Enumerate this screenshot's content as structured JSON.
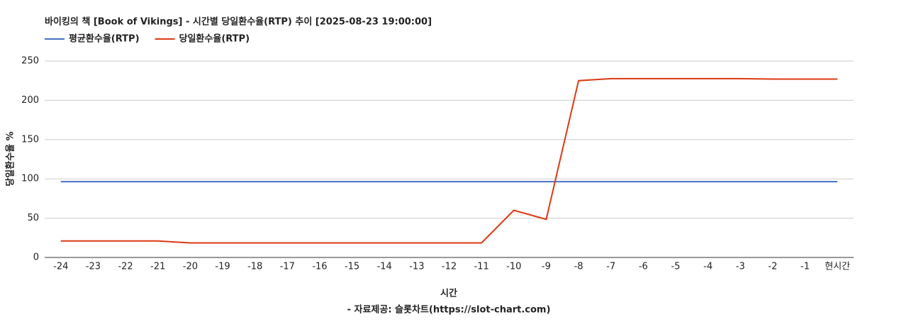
{
  "chart_data": {
    "type": "line",
    "title": "바이킹의 책 [Book of Vikings] - 시간별 당일환수율(RTP) 추이 [2025-08-23 19:00:00]",
    "x_label": "시간",
    "y_label": "당일환수율 %",
    "source": "- 자료제공: 슬롯차트(https://slot-chart.com)",
    "categories": [
      "-24",
      "-23",
      "-22",
      "-21",
      "-20",
      "-19",
      "-18",
      "-17",
      "-16",
      "-15",
      "-14",
      "-13",
      "-12",
      "-11",
      "-10",
      "-9",
      "-8",
      "-7",
      "-6",
      "-5",
      "-4",
      "-3",
      "-2",
      "-1",
      "현시간"
    ],
    "series": [
      {
        "name": "평균환수율(RTP)",
        "color": "#4472c4",
        "values": [
          96.5,
          96.5,
          96.5,
          96.5,
          96.5,
          96.5,
          96.5,
          96.5,
          96.5,
          96.5,
          96.5,
          96.5,
          96.5,
          96.5,
          96.5,
          96.5,
          96.5,
          96.5,
          96.5,
          96.5,
          96.5,
          96.5,
          96.5,
          96.5,
          96.5
        ]
      },
      {
        "name": "당일환수율(RTP)",
        "color": "#dc3912",
        "values": [
          21,
          21,
          21,
          21,
          18.5,
          18.5,
          18.5,
          18.5,
          18.5,
          18.5,
          18.5,
          18.5,
          18.5,
          18.5,
          60,
          48.5,
          225,
          227.5,
          227.5,
          227.5,
          227.5,
          227.5,
          227,
          227,
          227
        ]
      }
    ],
    "ylim": [
      0,
      250
    ],
    "yticks": [
      0,
      50,
      100,
      150,
      200,
      250
    ],
    "grid": true
  }
}
